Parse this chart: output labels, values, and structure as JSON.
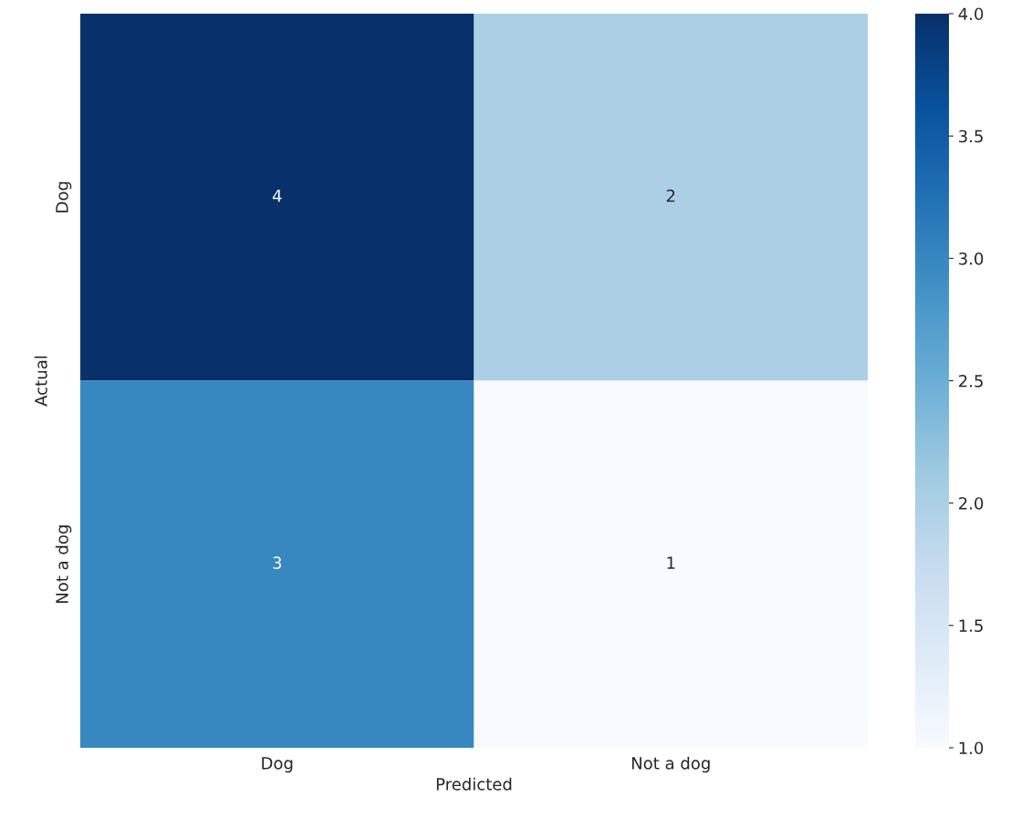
{
  "chart_data": {
    "type": "heatmap",
    "xlabel": "Predicted",
    "ylabel": "Actual",
    "categories": [
      "Dog",
      "Not a dog"
    ],
    "y_categories": [
      "Dog",
      "Not a dog"
    ],
    "cells": [
      [
        4,
        2
      ],
      [
        3,
        1
      ]
    ],
    "data_labels": true,
    "clim": [
      1,
      4
    ],
    "cticks": [
      {
        "value": 1,
        "label": "1.0"
      },
      1.5,
      {
        "value": 2,
        "label": "2.0"
      },
      2.5,
      {
        "value": 3,
        "label": "3.0"
      },
      3.5,
      {
        "value": 4,
        "label": "4.0"
      }
    ]
  }
}
